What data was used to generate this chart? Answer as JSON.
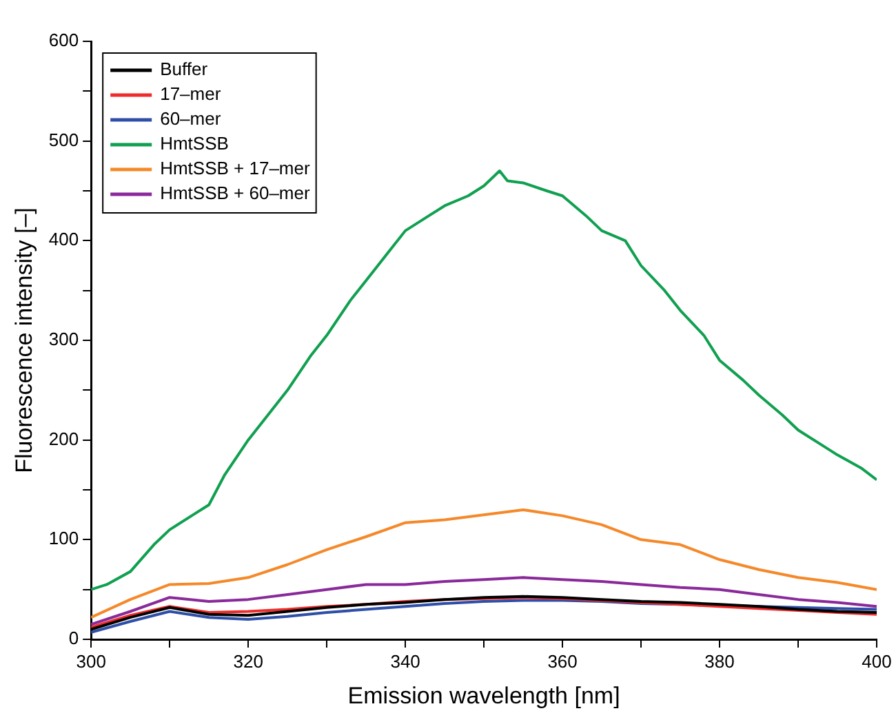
{
  "chart_data": {
    "type": "line",
    "xlabel": "Emission wavelength [nm]",
    "ylabel": "Fluorescence intensity [–]",
    "xlim": [
      300,
      400
    ],
    "ylim": [
      0,
      600
    ],
    "xticks": [
      300,
      {
        "value": 310,
        "label": null
      },
      320,
      {
        "value": 330,
        "label": null
      },
      340,
      {
        "value": 350,
        "label": null
      },
      360,
      {
        "value": 370,
        "label": null
      },
      380,
      {
        "value": 390,
        "label": null
      },
      400
    ],
    "yticks": [
      0,
      {
        "value": 50,
        "label": null
      },
      100,
      {
        "value": 150,
        "label": null
      },
      200,
      {
        "value": 250,
        "label": null
      },
      300,
      {
        "value": 350,
        "label": null
      },
      400,
      {
        "value": 450,
        "label": null
      },
      500,
      {
        "value": 550,
        "label": null
      },
      600
    ],
    "x": [
      300,
      305,
      310,
      315,
      320,
      325,
      330,
      335,
      340,
      345,
      350,
      355,
      360,
      365,
      370,
      375,
      380,
      385,
      390,
      395,
      400
    ],
    "grid": false,
    "legend": "top left",
    "marker": "none",
    "line_style": "solid",
    "series": [
      {
        "name": "Buffer",
        "color": "#000000",
        "values": [
          10,
          22,
          32,
          25,
          24,
          28,
          32,
          35,
          37,
          40,
          42,
          43,
          42,
          40,
          38,
          37,
          35,
          33,
          30,
          28,
          27
        ]
      },
      {
        "name": "17–mer",
        "color": "#ee2c2c",
        "values": [
          12,
          24,
          33,
          27,
          28,
          30,
          33,
          35,
          38,
          40,
          41,
          42,
          41,
          39,
          37,
          35,
          33,
          31,
          29,
          27,
          25
        ]
      },
      {
        "name": "60–mer",
        "color": "#2e4fa8",
        "values": [
          7,
          18,
          28,
          22,
          20,
          23,
          27,
          30,
          33,
          36,
          38,
          39,
          39,
          38,
          36,
          35,
          34,
          33,
          32,
          31,
          30
        ]
      },
      {
        "name": "HmtSSB",
        "color": "#10a050",
        "x": [
          300,
          302,
          305,
          308,
          310,
          313,
          315,
          317,
          320,
          323,
          325,
          328,
          330,
          333,
          335,
          338,
          340,
          343,
          345,
          348,
          350,
          352,
          353,
          355,
          358,
          360,
          363,
          365,
          368,
          370,
          373,
          375,
          378,
          380,
          383,
          385,
          388,
          390,
          393,
          395,
          398,
          400
        ],
        "values": [
          50,
          55,
          68,
          95,
          110,
          125,
          135,
          165,
          200,
          230,
          250,
          285,
          305,
          340,
          360,
          390,
          410,
          425,
          435,
          445,
          455,
          470,
          460,
          458,
          450,
          445,
          425,
          410,
          400,
          375,
          350,
          330,
          305,
          280,
          260,
          245,
          225,
          210,
          195,
          185,
          172,
          160
        ]
      },
      {
        "name": "HmtSSB + 17–mer",
        "color": "#f5892a",
        "values": [
          22,
          40,
          55,
          56,
          62,
          75,
          90,
          103,
          117,
          120,
          125,
          130,
          124,
          115,
          100,
          95,
          80,
          70,
          62,
          57,
          50
        ]
      },
      {
        "name": "HmtSSB + 60–mer",
        "color": "#8a2a9a",
        "values": [
          15,
          28,
          42,
          38,
          40,
          45,
          50,
          55,
          55,
          58,
          60,
          62,
          60,
          58,
          55,
          52,
          50,
          45,
          40,
          37,
          33
        ]
      }
    ]
  }
}
